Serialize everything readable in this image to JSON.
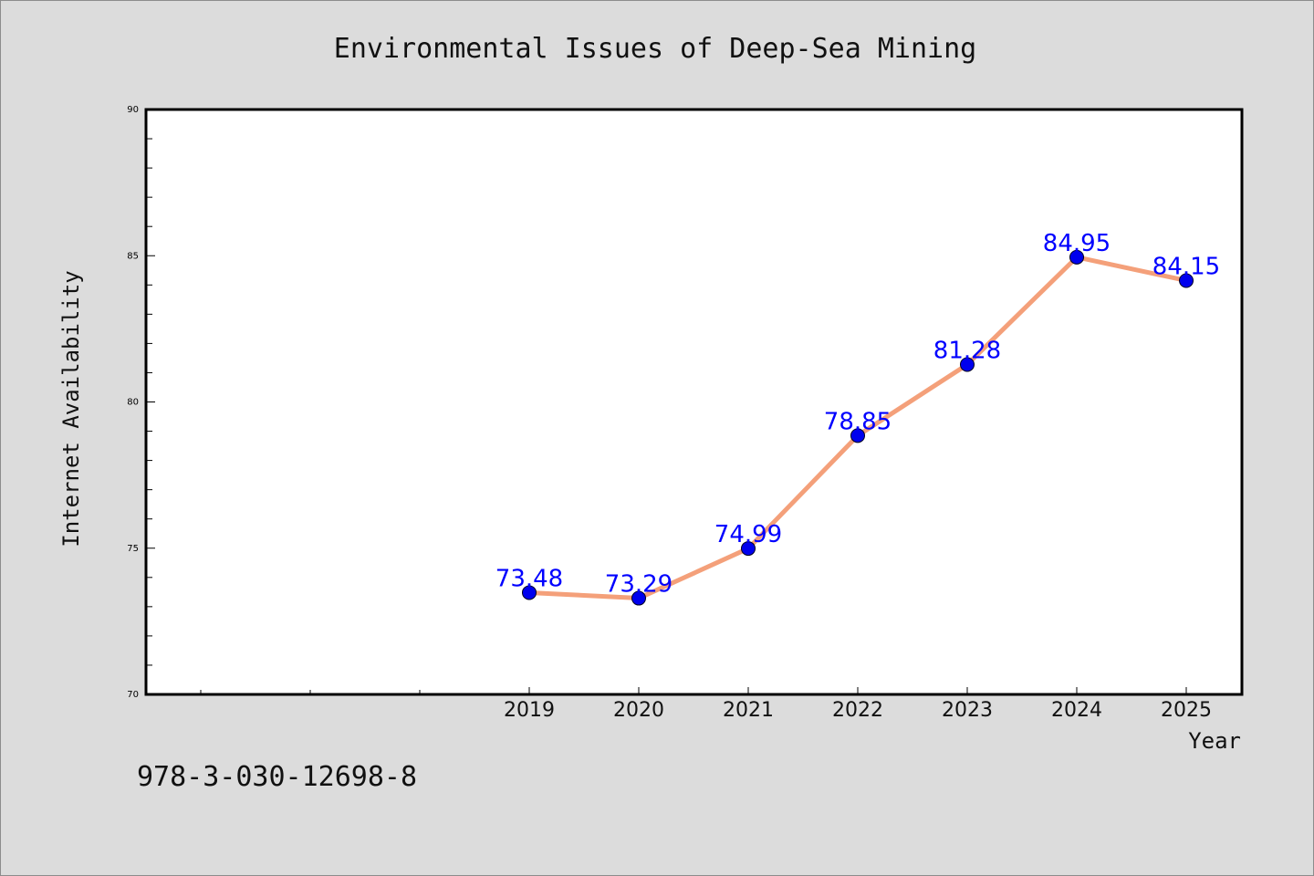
{
  "chart_data": {
    "type": "line",
    "title": "Environmental Issues of Deep-Sea Mining",
    "xlabel": "Year",
    "ylabel": "Internet Availability",
    "categories": [
      "2019",
      "2020",
      "2021",
      "2022",
      "2023",
      "2024",
      "2025"
    ],
    "series": [
      {
        "values": [
          73.48,
          73.29,
          74.99,
          78.85,
          81.28,
          84.95,
          84.15
        ],
        "data_labels": [
          "73.48",
          "73.29",
          "74.99",
          "78.85",
          "81.28",
          "84.95",
          "84.15"
        ]
      }
    ],
    "ylim": [
      70,
      90
    ],
    "y_ticks": [
      "70",
      "75",
      "80",
      "85",
      "90"
    ],
    "grid": false,
    "legend": "none",
    "colors": {
      "background": "#dcdcdc",
      "plot_background": "#ffffff",
      "line": "#f4a07a",
      "marker": "#0000ee",
      "data_label": "#0000ff"
    }
  },
  "footer": {
    "isbn": "978-3-030-12698-8"
  }
}
